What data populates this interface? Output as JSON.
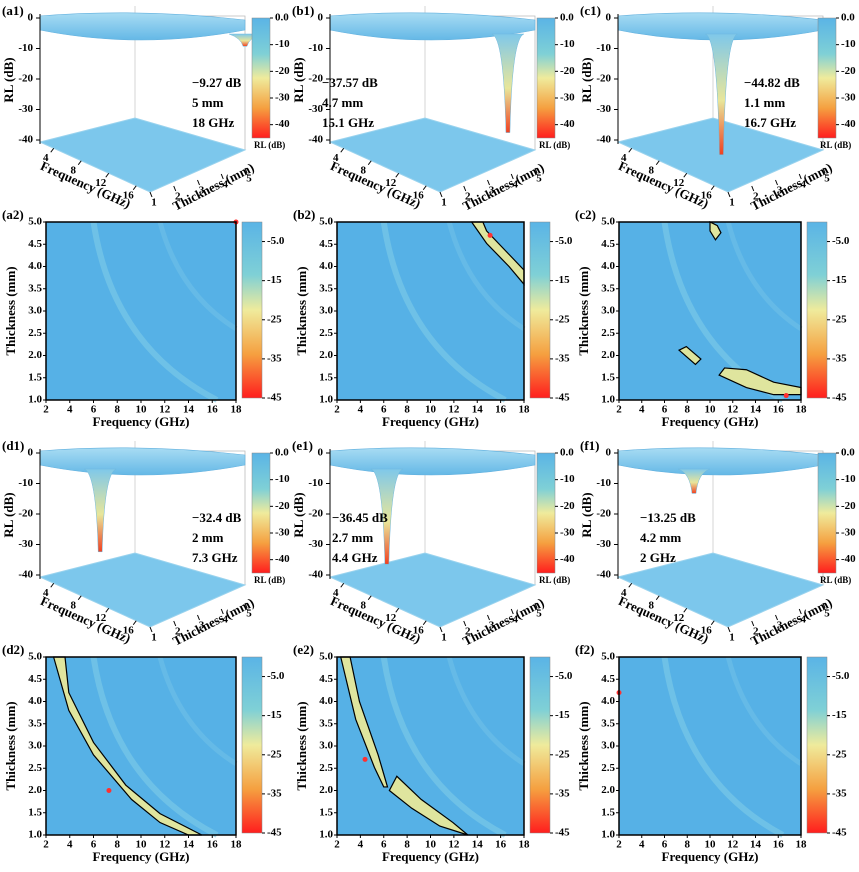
{
  "panels": [
    {
      "label3d": "(a1)",
      "label2d": "(a2)",
      "rl": {
        "value": -9.27,
        "label": "−9.27 dB"
      },
      "thickness": {
        "value": 5,
        "label": "5 mm"
      },
      "frequency": {
        "value": 18,
        "label": "18 GHz"
      }
    },
    {
      "label3d": "(b1)",
      "label2d": "(b2)",
      "rl": {
        "value": -37.57,
        "label": "−37.57 dB"
      },
      "thickness": {
        "value": 4.7,
        "label": "4.7 mm"
      },
      "frequency": {
        "value": 15.1,
        "label": "15.1 GHz"
      }
    },
    {
      "label3d": "(c1)",
      "label2d": "(c2)",
      "rl": {
        "value": -44.82,
        "label": "−44.82 dB"
      },
      "thickness": {
        "value": 1.1,
        "label": "1.1 mm"
      },
      "frequency": {
        "value": 16.7,
        "label": "16.7 GHz"
      }
    },
    {
      "label3d": "(d1)",
      "label2d": "(d2)",
      "rl": {
        "value": -32.4,
        "label": "−32.4 dB"
      },
      "thickness": {
        "value": 2,
        "label": "2 mm"
      },
      "frequency": {
        "value": 7.3,
        "label": "7.3 GHz"
      }
    },
    {
      "label3d": "(e1)",
      "label2d": "(e2)",
      "rl": {
        "value": -36.45,
        "label": "−36.45 dB"
      },
      "thickness": {
        "value": 2.7,
        "label": "2.7 mm"
      },
      "frequency": {
        "value": 4.4,
        "label": "4.4 GHz"
      }
    },
    {
      "label3d": "(f1)",
      "label2d": "(f2)",
      "rl": {
        "value": -13.25,
        "label": "−13.25 dB"
      },
      "thickness": {
        "value": 4.2,
        "label": "4.2 mm"
      },
      "frequency": {
        "value": 2,
        "label": "2 GHz"
      }
    }
  ],
  "axes_3d": {
    "z_label": "RL (dB)",
    "zlim": [
      -40,
      0
    ],
    "zticks": [
      0,
      -10,
      -20,
      -30,
      -40
    ],
    "x_label": "Frequency (GHz)",
    "xlim": [
      2,
      18
    ],
    "xticks": [
      4,
      8,
      12,
      16
    ],
    "y_label": "Thickness (mm)",
    "ylim": [
      1,
      5
    ],
    "yticks": [
      1,
      2,
      3,
      4,
      5
    ],
    "colorbar_title": "RL (dB)",
    "colorbar_lim": [
      -45,
      0
    ],
    "colorbar_ticks": [
      {
        "value": 0,
        "label": "0.0"
      },
      -10,
      -20,
      -30,
      -40
    ]
  },
  "axes_2d": {
    "x_label": "Frequency (GHz)",
    "xlim": [
      2,
      18
    ],
    "xticks": [
      2,
      4,
      6,
      8,
      10,
      12,
      14,
      16,
      18
    ],
    "y_label": "Thickness (mm)",
    "ylim": [
      1,
      5
    ],
    "yticks": [
      {
        "value": 1,
        "label": "1.0"
      },
      {
        "value": 1.5,
        "label": "1.5"
      },
      {
        "value": 2,
        "label": "2.0"
      },
      {
        "value": 2.5,
        "label": "2.5"
      },
      {
        "value": 3,
        "label": "3.0"
      },
      {
        "value": 3.5,
        "label": "3.5"
      },
      {
        "value": 4,
        "label": "4.0"
      },
      {
        "value": 4.5,
        "label": "4.5"
      },
      {
        "value": 5,
        "label": "5.0"
      }
    ],
    "colorbar_lim": [
      -45,
      0
    ],
    "colorbar_ticks": [
      {
        "value": -5,
        "label": "-5.0"
      },
      -15,
      -25,
      -35,
      -45
    ]
  }
}
